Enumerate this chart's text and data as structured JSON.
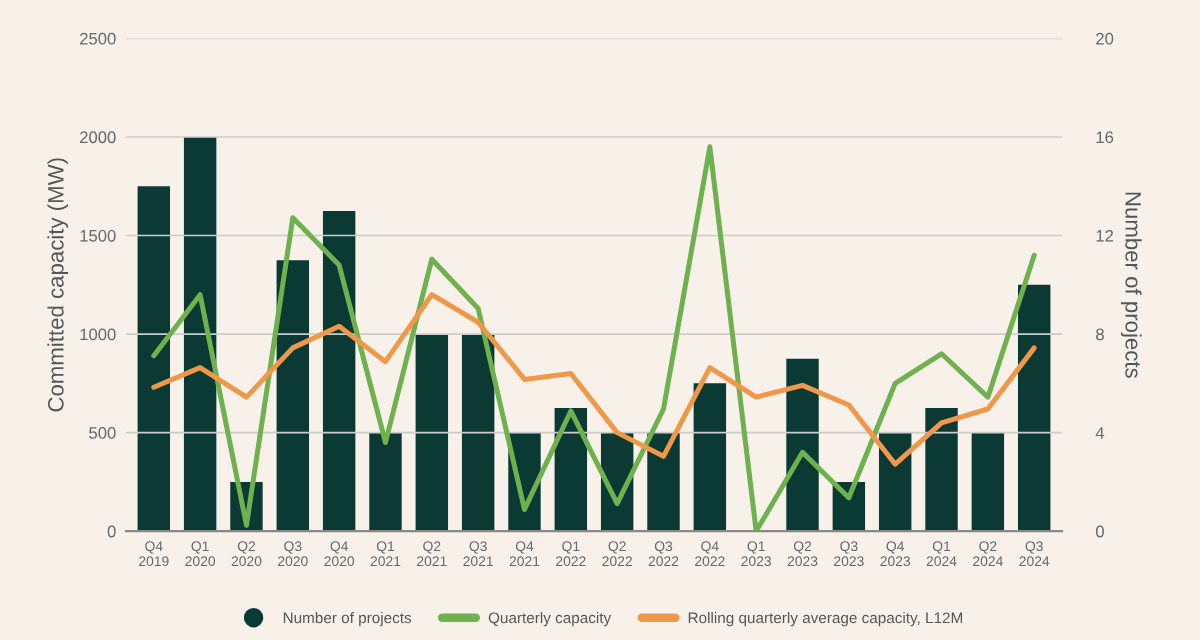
{
  "chart_data": {
    "type": "bar",
    "ylabel": "Committed capacity (MW)",
    "y2label": "Number of projects",
    "categories": [
      "Q4\n2019",
      "Q1\n2020",
      "Q2\n2020",
      "Q3\n2020",
      "Q4\n2020",
      "Q1\n2021",
      "Q2\n2021",
      "Q3\n2021",
      "Q4\n2021",
      "Q1\n2022",
      "Q2\n2022",
      "Q3\n2022",
      "Q4\n2022",
      "Q1\n2023",
      "Q2\n2023",
      "Q3\n2023",
      "Q4\n2023",
      "Q1\n2024",
      "Q2\n2024",
      "Q3\n2024"
    ],
    "series": [
      {
        "name": "Number of projects",
        "axis": "y2",
        "color": "#0b3a34",
        "values": [
          14,
          16,
          2,
          11,
          13,
          4,
          8,
          8,
          4,
          5,
          4,
          4,
          6,
          0,
          7,
          2,
          4,
          5,
          4,
          10
        ]
      },
      {
        "name": "Quarterly capacity",
        "type": "line",
        "color": "#6fb04f",
        "values": [
          890,
          1200,
          30,
          1590,
          1350,
          450,
          1380,
          1130,
          110,
          610,
          140,
          620,
          1950,
          0,
          400,
          170,
          750,
          900,
          680,
          1400
        ]
      },
      {
        "name": "Rolling quarterly average capacity, L12M",
        "type": "line",
        "color": "#f0984a",
        "values": [
          730,
          830,
          680,
          930,
          1040,
          860,
          1200,
          1060,
          770,
          800,
          500,
          380,
          830,
          680,
          740,
          640,
          340,
          550,
          620,
          930
        ]
      }
    ],
    "ylim": [
      0,
      2500
    ],
    "yticks": [
      0,
      500,
      1000,
      1500,
      2000,
      2500
    ],
    "y2lim": [
      0,
      20
    ],
    "y2ticks": [
      0,
      4,
      8,
      12,
      16,
      20
    ],
    "grid": "y",
    "legend": "bottom"
  }
}
